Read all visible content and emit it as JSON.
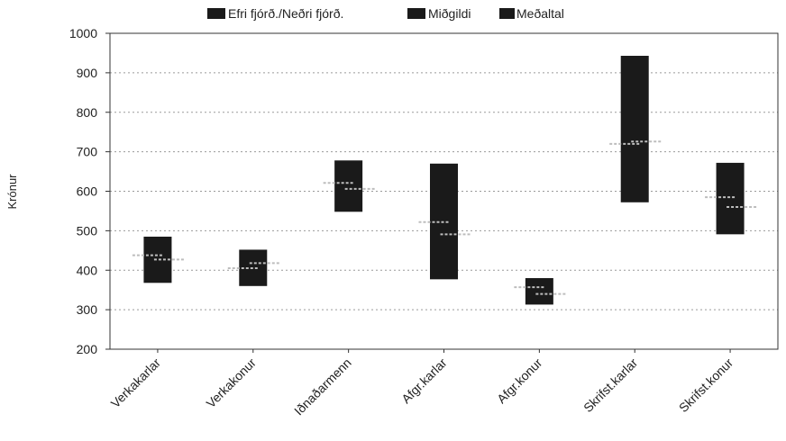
{
  "chart_data": {
    "type": "box",
    "ylabel": "Krónur",
    "ylim": [
      200,
      1000
    ],
    "yticks": [
      200,
      300,
      400,
      500,
      600,
      700,
      800,
      900,
      1000
    ],
    "grid": true,
    "legend_position": "top",
    "legend": [
      {
        "key": "range",
        "label": "Efri fjórð./Neðri fjórð."
      },
      {
        "key": "median",
        "label": "Miðgildi"
      },
      {
        "key": "mean",
        "label": "Meðaltal"
      }
    ],
    "categories": [
      "Verkakarlar",
      "Verkakonur",
      "Iðnaðarmenn",
      "Afgr.karlar",
      "Afgr.konur",
      "Skrifst.karlar",
      "Skrifst.konur"
    ],
    "series": [
      {
        "name": "Efri fjórð.",
        "values": [
          485,
          452,
          678,
          670,
          380,
          943,
          672
        ]
      },
      {
        "name": "Neðri fjórð.",
        "values": [
          368,
          360,
          548,
          377,
          313,
          572,
          491
        ]
      },
      {
        "name": "Miðgildi",
        "values": [
          438,
          405,
          621,
          522,
          357,
          720,
          585
        ]
      },
      {
        "name": "Meðaltal",
        "values": [
          427,
          418,
          606,
          491,
          340,
          726,
          560
        ]
      }
    ],
    "colors": {
      "box": "#1a1a1a",
      "grid": "#9a9a9a",
      "marker": "#bdbdbd",
      "axis": "#333333"
    }
  }
}
